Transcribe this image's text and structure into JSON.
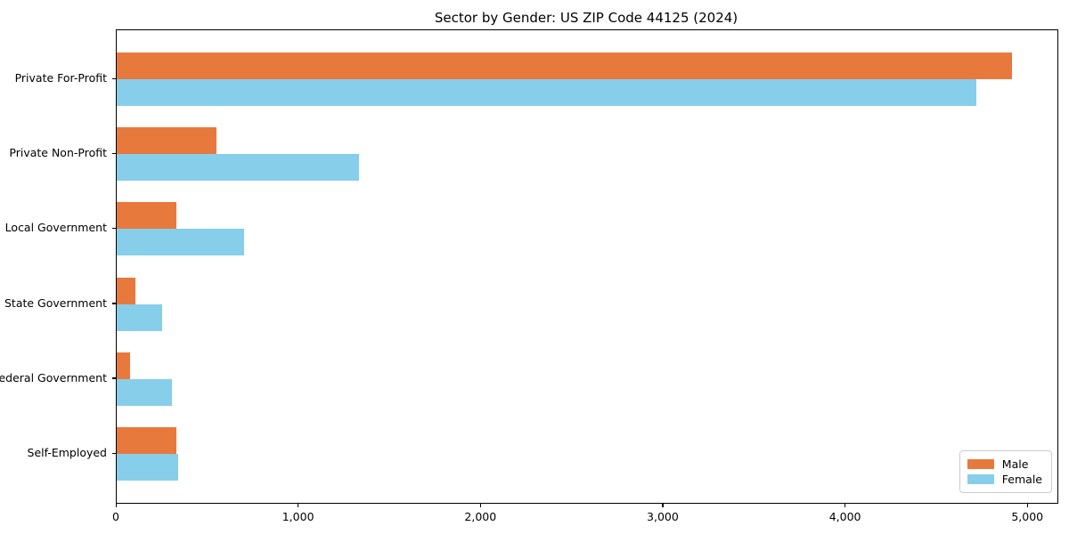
{
  "title": "Sector by Gender: US ZIP Code 44125 (2024)",
  "chart_data": {
    "type": "bar",
    "orientation": "horizontal",
    "title": "Sector by Gender: US ZIP Code 44125 (2024)",
    "categories": [
      "Private For-Profit",
      "Private Non-Profit",
      "Local Government",
      "State Government",
      "Federal Government",
      "Self-Employed"
    ],
    "series": [
      {
        "name": "Male",
        "color": "#e8793c",
        "values": [
          4910,
          545,
          325,
          105,
          75,
          325
        ]
      },
      {
        "name": "Female",
        "color": "#87ceeb",
        "values": [
          4715,
          1330,
          700,
          250,
          305,
          335
        ]
      }
    ],
    "xlabel": "",
    "ylabel": "",
    "xlim": [
      0,
      5160
    ],
    "xticks": [
      0,
      1000,
      2000,
      3000,
      4000,
      5000
    ],
    "xtick_labels": [
      "0",
      "1,000",
      "2,000",
      "3,000",
      "4,000",
      "5,000"
    ],
    "grid": false,
    "legend_position": "lower right",
    "axes_box": true
  }
}
